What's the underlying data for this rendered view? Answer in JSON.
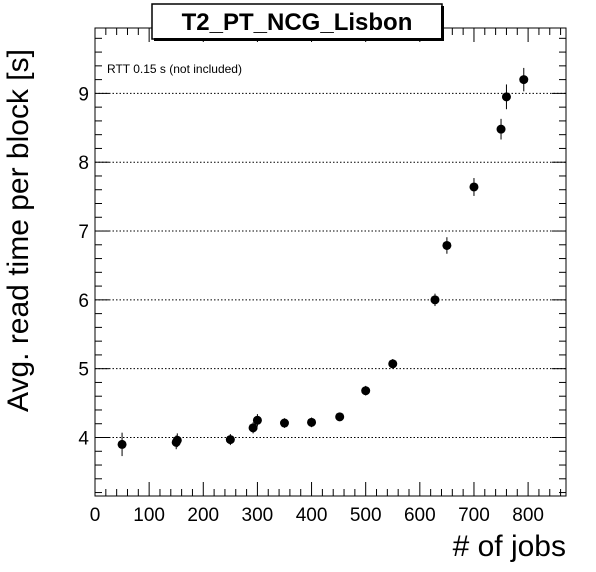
{
  "chart_data": {
    "type": "scatter",
    "title": "T2_PT_NCG_Lisbon",
    "xlabel": "# of jobs",
    "ylabel": "Avg. read time per block [s]",
    "annotation": "RTT 0.15 s (not included)",
    "xlim": [
      0,
      870
    ],
    "ylim": [
      3.15,
      9.95
    ],
    "xticks": [
      0,
      100,
      200,
      300,
      400,
      500,
      600,
      700,
      800
    ],
    "yticks": [
      4,
      5,
      6,
      7,
      8,
      9
    ],
    "grid": "horizontal dotted at major y ticks",
    "points": [
      {
        "x": 50,
        "y": 3.9,
        "err": 0.17
      },
      {
        "x": 150,
        "y": 3.93,
        "err": 0.1
      },
      {
        "x": 152,
        "y": 3.96,
        "err": 0.1
      },
      {
        "x": 250,
        "y": 3.97,
        "err": 0.08
      },
      {
        "x": 292,
        "y": 4.14,
        "err": 0.08
      },
      {
        "x": 300,
        "y": 4.25,
        "err": 0.09
      },
      {
        "x": 350,
        "y": 4.21,
        "err": 0.07
      },
      {
        "x": 400,
        "y": 4.22,
        "err": 0.07
      },
      {
        "x": 452,
        "y": 4.3,
        "err": 0.06
      },
      {
        "x": 500,
        "y": 4.68,
        "err": 0.07
      },
      {
        "x": 550,
        "y": 5.07,
        "err": 0.07
      },
      {
        "x": 628,
        "y": 6.0,
        "err": 0.09
      },
      {
        "x": 650,
        "y": 6.79,
        "err": 0.12
      },
      {
        "x": 700,
        "y": 7.64,
        "err": 0.13
      },
      {
        "x": 750,
        "y": 8.48,
        "err": 0.15
      },
      {
        "x": 760,
        "y": 8.95,
        "err": 0.18
      },
      {
        "x": 792,
        "y": 9.2,
        "err": 0.17
      }
    ]
  }
}
